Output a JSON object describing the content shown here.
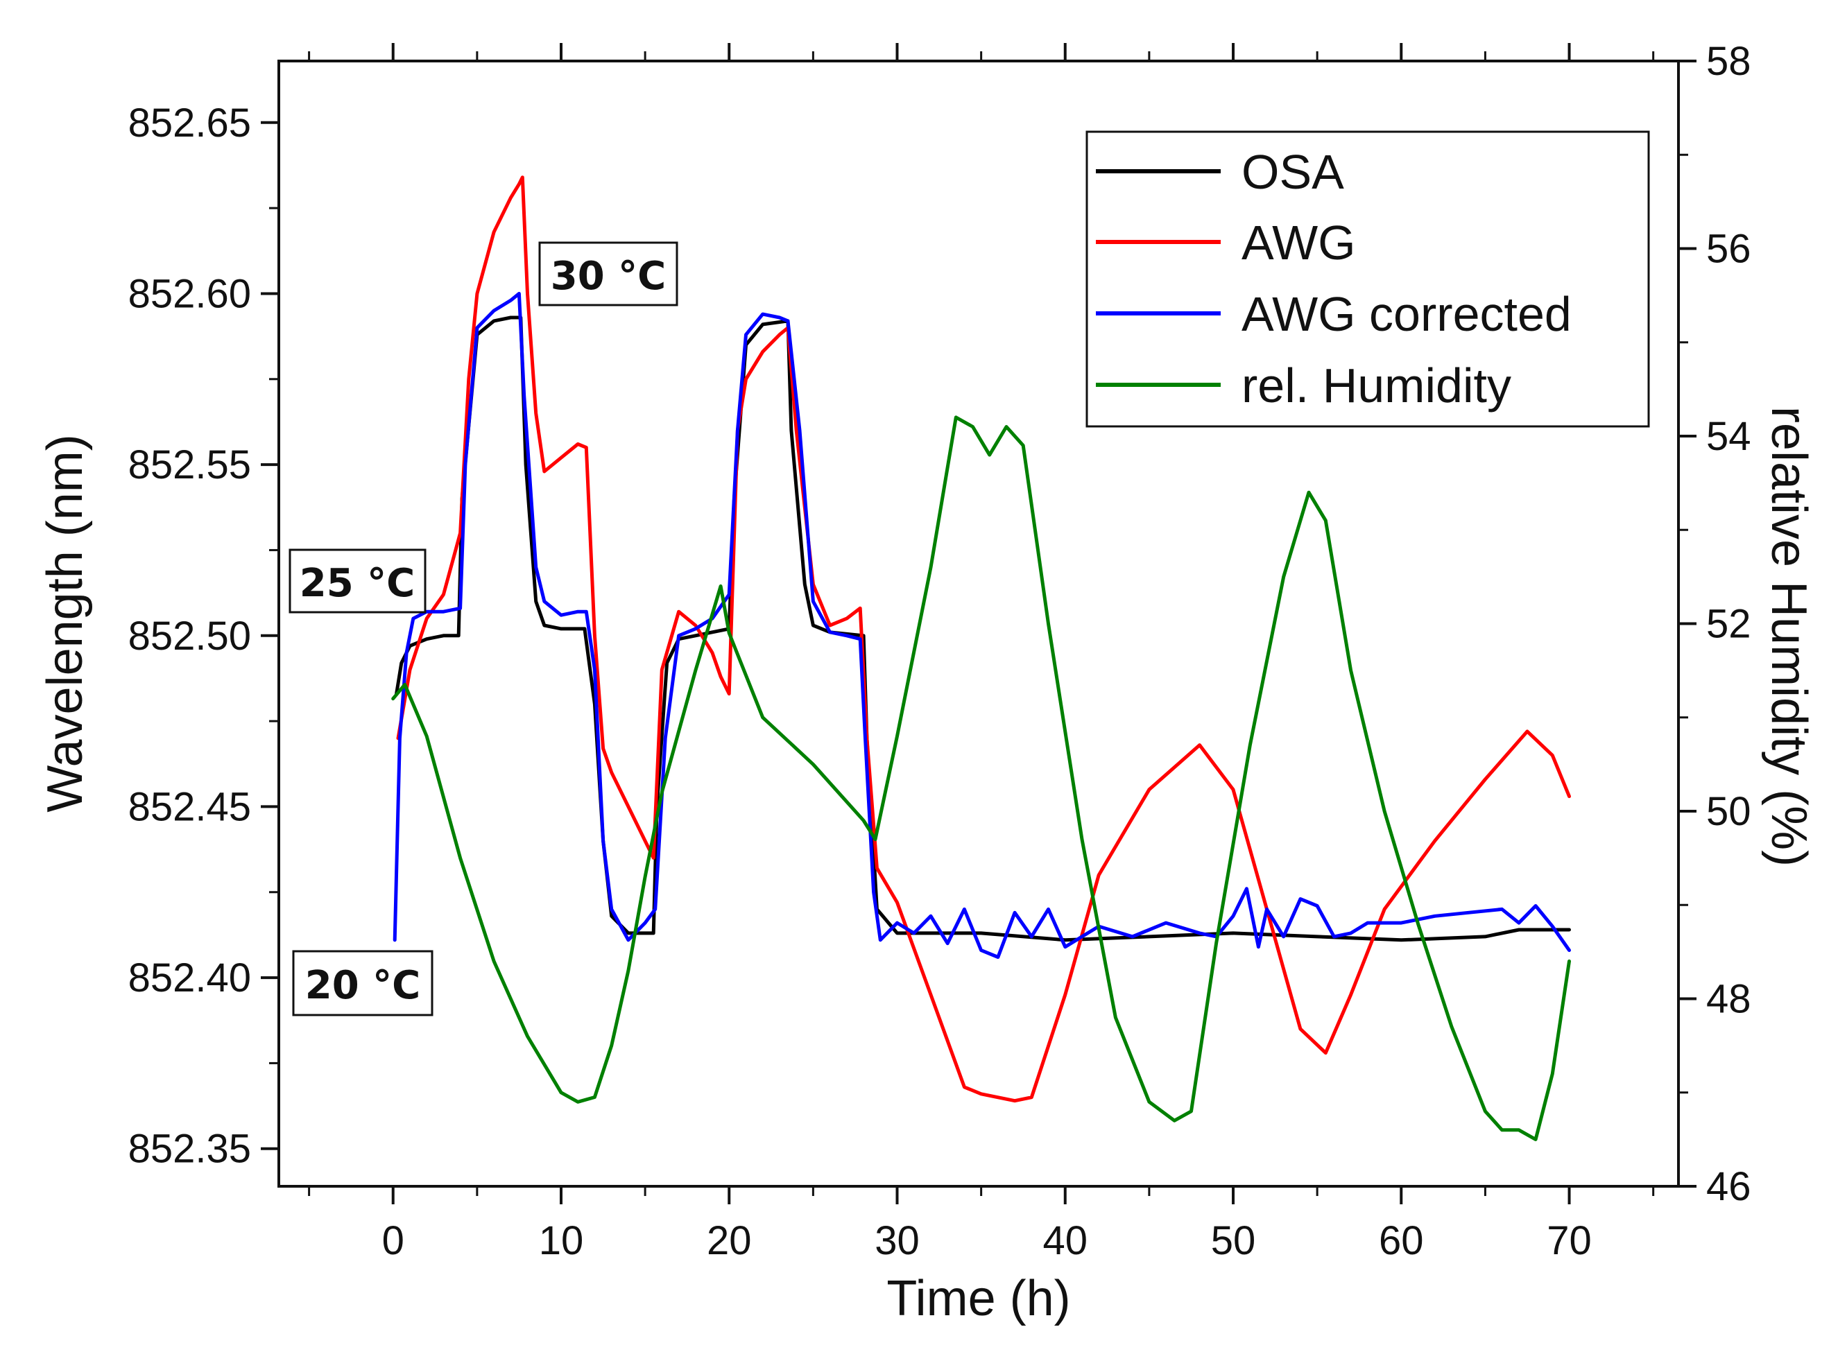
{
  "chart_data": {
    "type": "line",
    "title": "",
    "xlabel": "Time (h)",
    "ylabel": "Wavelength (nm)",
    "y2label": "relative Humidity (%)",
    "xlim": [
      -6.8,
      76.5
    ],
    "ylim": [
      852.339,
      852.668
    ],
    "y2lim": [
      46,
      58
    ],
    "xticks": [
      0,
      10,
      20,
      30,
      40,
      50,
      60,
      70
    ],
    "xtick_labels": [
      "0",
      "10",
      "20",
      "30",
      "40",
      "50",
      "60",
      "70"
    ],
    "yticks": [
      852.35,
      852.4,
      852.45,
      852.5,
      852.55,
      852.6,
      852.65
    ],
    "ytick_labels": [
      "852.35",
      "852.40",
      "852.45",
      "852.50",
      "852.55",
      "852.60",
      "852.65"
    ],
    "y2ticks": [
      46,
      48,
      50,
      52,
      54,
      56,
      58
    ],
    "y2tick_labels": [
      "46",
      "48",
      "50",
      "52",
      "54",
      "56",
      "58"
    ],
    "legend_position": "top-right",
    "annotations": [
      {
        "text": "30 °C",
        "x": 13.2,
        "y": 852.6
      },
      {
        "text": "25 °C",
        "x": -1.9,
        "y": 852.514
      },
      {
        "text": "20 °C",
        "x": -1.9,
        "y": 852.398
      }
    ],
    "series": [
      {
        "name": "OSA",
        "color": "#000000",
        "axis": "left",
        "x": [
          0.2,
          0.5,
          1,
          2,
          3,
          3.9,
          4.1,
          5,
          6,
          7,
          7.6,
          7.9,
          8.5,
          9,
          10,
          11.4,
          12,
          12.5,
          13,
          14,
          15.5,
          15.7,
          16.3,
          17,
          18,
          20,
          20.3,
          21,
          22,
          23.5,
          23.7,
          24.5,
          25,
          26,
          28,
          28.2,
          28.8,
          30,
          35,
          40,
          45,
          50,
          55,
          60,
          65,
          67,
          70
        ],
        "y": [
          852.483,
          852.492,
          852.497,
          852.499,
          852.5,
          852.5,
          852.54,
          852.588,
          852.592,
          852.593,
          852.593,
          852.55,
          852.51,
          852.503,
          852.502,
          852.502,
          852.48,
          852.44,
          852.418,
          852.413,
          852.413,
          852.45,
          852.492,
          852.499,
          852.5,
          852.502,
          852.54,
          852.585,
          852.591,
          852.592,
          852.56,
          852.515,
          852.503,
          852.501,
          852.5,
          852.47,
          852.42,
          852.413,
          852.413,
          852.411,
          852.412,
          852.413,
          852.412,
          852.411,
          852.412,
          852.414,
          852.414
        ]
      },
      {
        "name": "AWG",
        "color": "#ff0000",
        "axis": "left",
        "x": [
          0.3,
          1,
          2,
          3,
          4,
          4.5,
          5,
          6,
          7,
          7.5,
          7.7,
          8,
          8.5,
          9,
          10,
          11,
          11.5,
          12,
          12.5,
          13,
          14,
          15,
          15.5,
          16,
          17,
          18,
          19,
          19.5,
          20,
          20.5,
          21,
          22,
          23,
          23.5,
          24,
          25,
          26,
          27,
          27.8,
          28.2,
          28.8,
          30,
          32,
          34,
          35,
          37,
          38,
          40,
          42,
          45,
          48,
          50,
          52,
          54,
          55.5,
          57,
          59,
          62,
          65,
          67.5,
          69,
          70
        ],
        "y": [
          852.47,
          852.49,
          852.505,
          852.512,
          852.53,
          852.575,
          852.6,
          852.618,
          852.628,
          852.632,
          852.634,
          852.6,
          852.565,
          852.548,
          852.552,
          852.556,
          852.555,
          852.5,
          852.467,
          852.46,
          852.45,
          852.44,
          852.435,
          852.49,
          852.507,
          852.503,
          852.495,
          852.488,
          852.483,
          852.56,
          852.575,
          852.583,
          852.588,
          852.59,
          852.56,
          852.515,
          852.503,
          852.505,
          852.508,
          852.47,
          852.432,
          852.422,
          852.395,
          852.368,
          852.366,
          852.364,
          852.365,
          852.395,
          852.43,
          852.455,
          852.468,
          852.455,
          852.42,
          852.385,
          852.378,
          852.395,
          852.42,
          852.44,
          852.458,
          852.472,
          852.465,
          852.453
        ]
      },
      {
        "name": "AWG corrected",
        "color": "#0000ff",
        "axis": "left",
        "x": [
          0.1,
          0.4,
          0.8,
          1.2,
          2,
          3,
          4,
          4.3,
          5,
          6,
          7,
          7.5,
          7.8,
          8.5,
          9,
          10,
          11,
          11.5,
          12,
          12.5,
          13,
          14,
          15,
          15.6,
          16.2,
          17,
          18,
          19,
          20,
          20.5,
          21,
          22,
          23,
          23.5,
          24.2,
          25,
          26,
          27,
          27.8,
          28.1,
          28.6,
          29,
          30,
          31,
          32,
          33,
          34,
          35,
          36,
          37,
          38,
          39,
          40,
          41,
          42,
          44,
          46,
          48,
          49,
          50,
          50.8,
          51.5,
          52,
          53,
          54,
          55,
          56,
          57,
          58,
          60,
          62,
          64,
          66,
          67,
          68,
          69,
          70
        ],
        "y": [
          852.411,
          852.47,
          852.495,
          852.505,
          852.507,
          852.507,
          852.508,
          852.55,
          852.59,
          852.595,
          852.598,
          852.6,
          852.57,
          852.52,
          852.51,
          852.506,
          852.507,
          852.507,
          852.49,
          852.44,
          852.42,
          852.411,
          852.416,
          852.42,
          852.47,
          852.5,
          852.502,
          852.505,
          852.512,
          852.56,
          852.588,
          852.594,
          852.593,
          852.592,
          852.56,
          852.51,
          852.501,
          852.5,
          852.499,
          852.47,
          852.425,
          852.411,
          852.416,
          852.413,
          852.418,
          852.41,
          852.42,
          852.408,
          852.406,
          852.419,
          852.412,
          852.42,
          852.409,
          852.412,
          852.415,
          852.412,
          852.416,
          852.413,
          852.412,
          852.418,
          852.426,
          852.409,
          852.42,
          852.412,
          852.423,
          852.421,
          852.412,
          852.413,
          852.416,
          852.416,
          852.418,
          852.419,
          852.42,
          852.416,
          852.421,
          852.415,
          852.408
        ]
      },
      {
        "name": "rel. Humidity",
        "color": "#008000",
        "axis": "right",
        "x": [
          0,
          0.7,
          2,
          4,
          6,
          8,
          10,
          11,
          12,
          13,
          14,
          15,
          16,
          18,
          19.5,
          20,
          22,
          25,
          28,
          28.7,
          30,
          32,
          33.5,
          34.5,
          35.5,
          36.5,
          37.5,
          39,
          41,
          43,
          45,
          46.5,
          47.5,
          49,
          51,
          53,
          54.5,
          55.5,
          57,
          59,
          61,
          63,
          65,
          66,
          67,
          68,
          69,
          70
        ],
        "y": [
          51.2,
          51.35,
          50.8,
          49.5,
          48.4,
          47.6,
          47.0,
          46.9,
          46.95,
          47.5,
          48.3,
          49.3,
          50.2,
          51.5,
          52.4,
          51.9,
          51.0,
          50.5,
          49.9,
          49.7,
          50.8,
          52.6,
          54.2,
          54.1,
          53.8,
          54.1,
          53.9,
          52.0,
          49.7,
          47.8,
          46.9,
          46.7,
          46.8,
          48.6,
          50.7,
          52.5,
          53.4,
          53.1,
          51.5,
          50.0,
          48.8,
          47.7,
          46.8,
          46.6,
          46.6,
          46.5,
          47.2,
          48.4
        ]
      }
    ]
  }
}
